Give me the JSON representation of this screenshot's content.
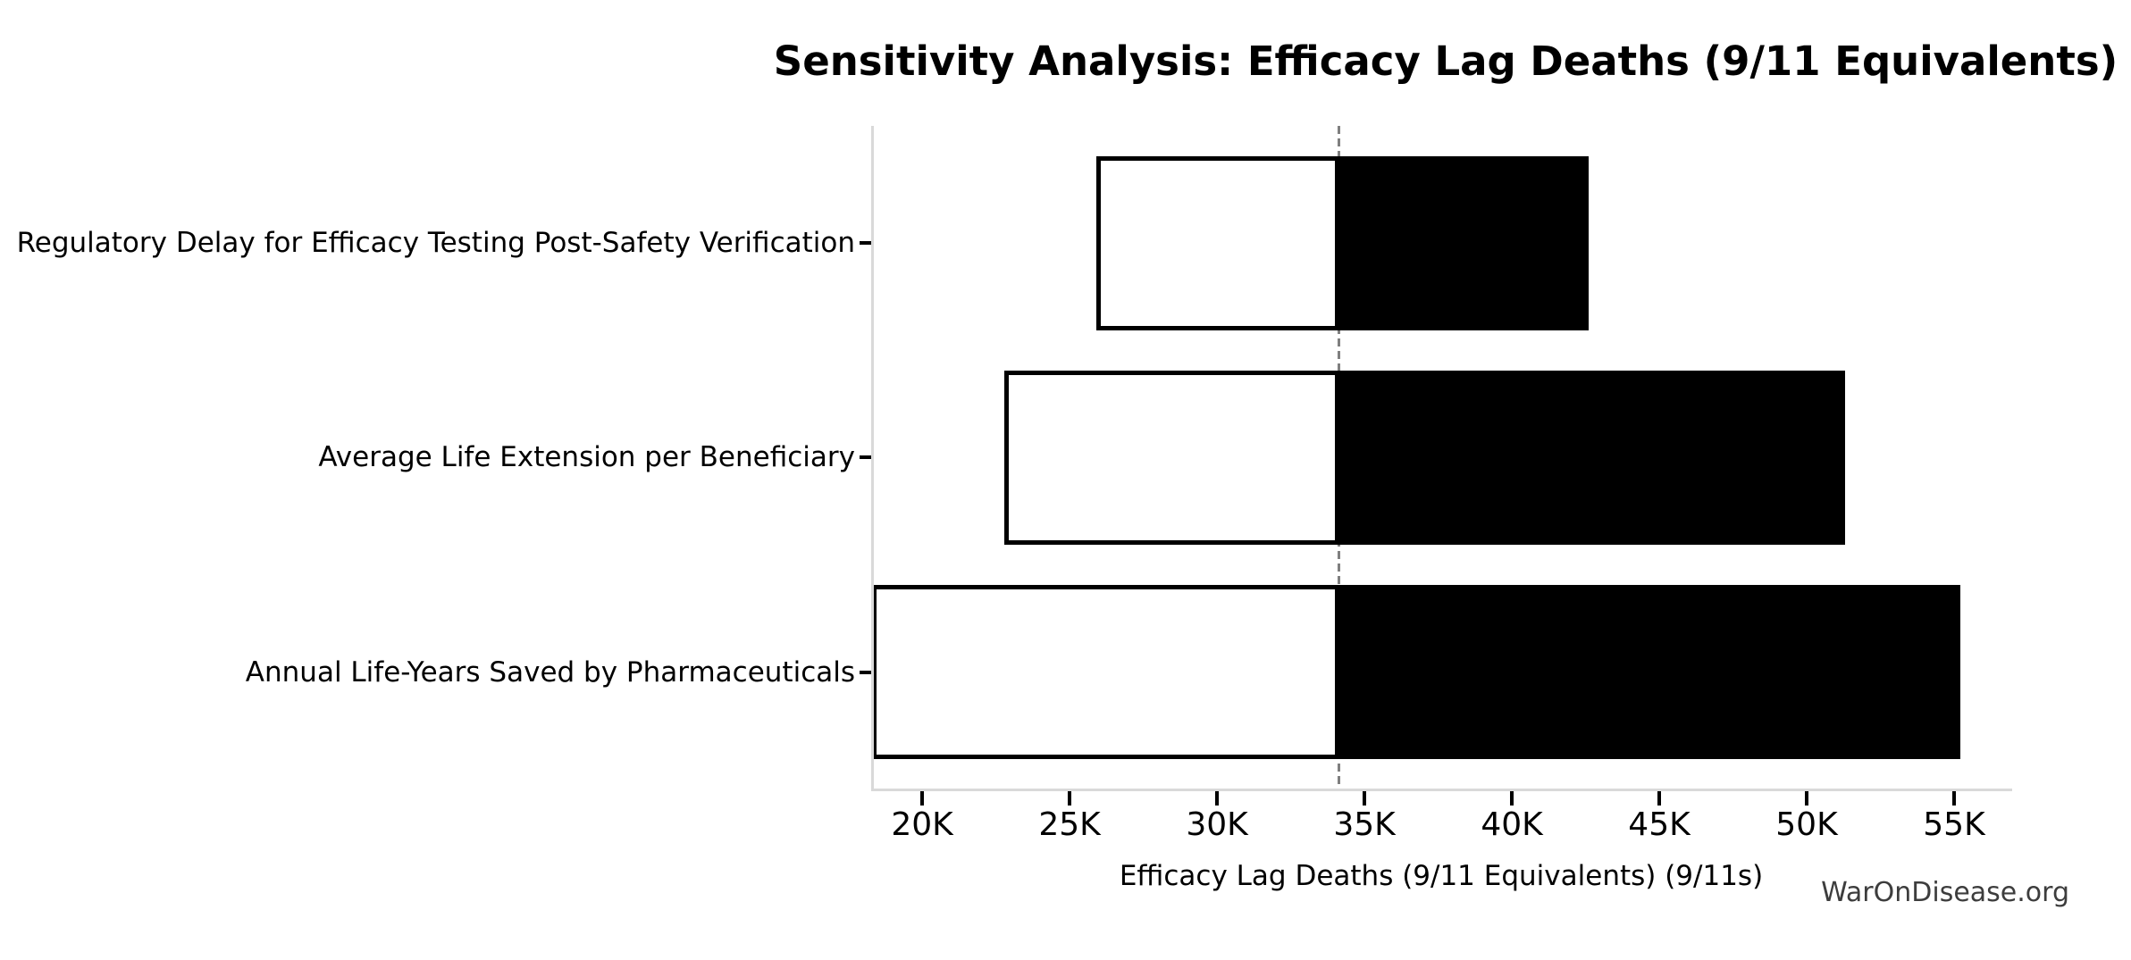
{
  "title": "Sensitivity Analysis: Efficacy Lag Deaths (9/11 Equivalents)",
  "watermark": "WarOnDisease.org",
  "chart_data": {
    "type": "bar",
    "subtype": "tornado-sensitivity",
    "orientation": "horizontal",
    "title": "Sensitivity Analysis: Efficacy Lag Deaths (9/11 Equivalents)",
    "xlabel": "Efficacy Lag Deaths (9/11 Equivalents) (9/11s)",
    "ylabel": "",
    "categories": [
      "Regulatory Delay for Efficacy Testing Post-Safety Verification",
      "Average Life Extension per Beneficiary",
      "Annual Life-Years Saved by Pharmaceuticals"
    ],
    "series": [
      {
        "name": "low-value",
        "values": [
          25900,
          22800,
          18300
        ]
      },
      {
        "name": "high-value",
        "values": [
          42600,
          51300,
          55200
        ]
      }
    ],
    "baseline": 34150,
    "xlim": [
      18270,
      56970
    ],
    "xticks": [
      {
        "value": 20000,
        "label": "20K"
      },
      {
        "value": 25000,
        "label": "25K"
      },
      {
        "value": 30000,
        "label": "30K"
      },
      {
        "value": 35000,
        "label": "35K"
      },
      {
        "value": 40000,
        "label": "40K"
      },
      {
        "value": 45000,
        "label": "45K"
      },
      {
        "value": 50000,
        "label": "50K"
      },
      {
        "value": 55000,
        "label": "55K"
      }
    ],
    "grid": false,
    "legend": "none",
    "colors": {
      "low_fill": "#ffffff",
      "high_fill": "#000000",
      "bar_edge": "#000000",
      "baseline_line": "#7f7f7f",
      "spine": "#d9d9d9",
      "text": "#000000",
      "watermark_text": "#3d3d3d"
    }
  }
}
